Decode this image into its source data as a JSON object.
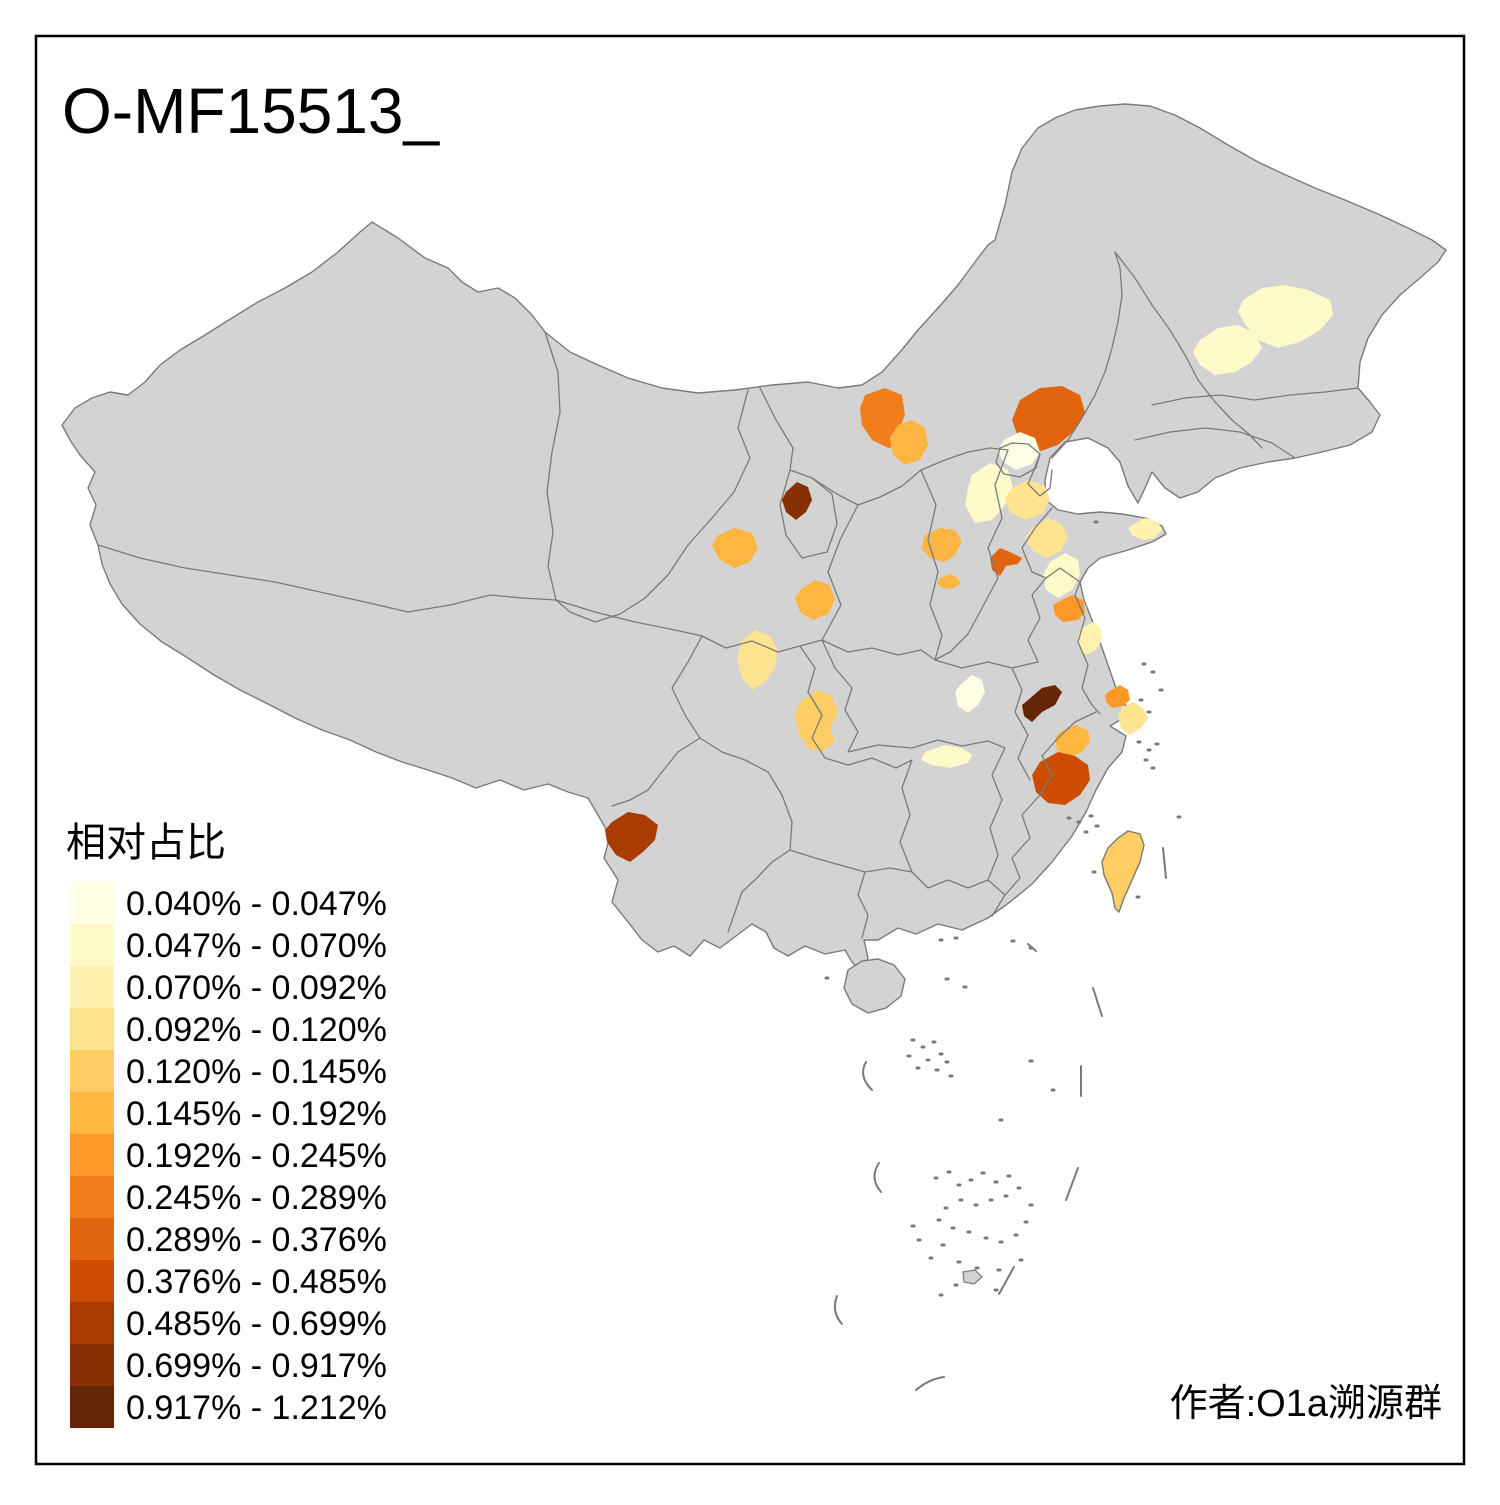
{
  "title": "O-MF15513_",
  "attribution": "作者:O1a溯源群",
  "legend": {
    "title": "相对占比",
    "items": [
      {
        "range": "0.040% - 0.047%",
        "color": "#FFFFE5"
      },
      {
        "range": "0.047% - 0.070%",
        "color": "#FFFACA"
      },
      {
        "range": "0.070% - 0.092%",
        "color": "#FFF1AE"
      },
      {
        "range": "0.092% - 0.120%",
        "color": "#FEE391"
      },
      {
        "range": "0.120% - 0.145%",
        "color": "#FECE65"
      },
      {
        "range": "0.145% - 0.192%",
        "color": "#FEB642"
      },
      {
        "range": "0.192% - 0.245%",
        "color": "#FE9929"
      },
      {
        "range": "0.245% - 0.289%",
        "color": "#F27E1B"
      },
      {
        "range": "0.289% - 0.376%",
        "color": "#E1640E"
      },
      {
        "range": "0.376% - 0.485%",
        "color": "#CC4C02"
      },
      {
        "range": "0.485% - 0.699%",
        "color": "#AA3C03"
      },
      {
        "range": "0.699% - 0.917%",
        "color": "#882F05"
      },
      {
        "range": "0.917% - 1.212%",
        "color": "#662506"
      }
    ]
  },
  "map": {
    "land_color": "#D3D3D3",
    "border_color": "#7A7A7A",
    "sea_color": "#FFFFFF",
    "frame_color": "#000000",
    "regions": [
      {
        "id": "heilongjiang-north",
        "range": "0.047% - 0.070%",
        "color": "#FFFACA"
      },
      {
        "id": "heilongjiang-south",
        "range": "0.047% - 0.070%",
        "color": "#FFFACA"
      },
      {
        "id": "baotou",
        "range": "0.245% - 0.289%",
        "color": "#F27E1B"
      },
      {
        "id": "hohhot",
        "range": "0.145% - 0.192%",
        "color": "#FEB642"
      },
      {
        "id": "chengde",
        "range": "0.289% - 0.376%",
        "color": "#E1640E"
      },
      {
        "id": "beijing",
        "range": "0.040% - 0.047%",
        "color": "#FFFFE5"
      },
      {
        "id": "baoding",
        "range": "0.047% - 0.070%",
        "color": "#FFFACA"
      },
      {
        "id": "cangzhou",
        "range": "0.092% - 0.120%",
        "color": "#FEE391"
      },
      {
        "id": "shizuishan",
        "range": "0.699% - 0.917%",
        "color": "#882F05"
      },
      {
        "id": "lanzhou",
        "range": "0.145% - 0.192%",
        "color": "#FEB642"
      },
      {
        "id": "luliang",
        "range": "0.145% - 0.192%",
        "color": "#FEB642"
      },
      {
        "id": "linfen",
        "range": "0.145% - 0.192%",
        "color": "#FEB642"
      },
      {
        "id": "zhengzhou",
        "range": "0.289% - 0.376%",
        "color": "#E1640E"
      },
      {
        "id": "jinan",
        "range": "0.092% - 0.120%",
        "color": "#FEE391"
      },
      {
        "id": "shandong-south",
        "range": "0.047% - 0.070%",
        "color": "#FFFACA"
      },
      {
        "id": "weihai",
        "range": "0.070% - 0.092%",
        "color": "#FFF1AE"
      },
      {
        "id": "baoji",
        "range": "0.145% - 0.192%",
        "color": "#FEB642"
      },
      {
        "id": "mianyang",
        "range": "0.092% - 0.120%",
        "color": "#FEE391"
      },
      {
        "id": "chongqing-west",
        "range": "0.120% - 0.145%",
        "color": "#FECE65"
      },
      {
        "id": "huaian",
        "range": "0.192% - 0.245%",
        "color": "#FE9929"
      },
      {
        "id": "yancheng",
        "range": "0.070% - 0.092%",
        "color": "#FFF1AE"
      },
      {
        "id": "wuxi",
        "range": "0.192% - 0.245%",
        "color": "#FE9929"
      },
      {
        "id": "shanghai",
        "range": "0.092% - 0.120%",
        "color": "#FEE391"
      },
      {
        "id": "hangzhou",
        "range": "0.145% - 0.192%",
        "color": "#FEB642"
      },
      {
        "id": "hubei-central",
        "range": "0.040% - 0.047%",
        "color": "#FFFFE5"
      },
      {
        "id": "anqing",
        "range": "0.917% - 1.212%",
        "color": "#662506"
      },
      {
        "id": "shangrao",
        "range": "0.376% - 0.485%",
        "color": "#CC4C02"
      },
      {
        "id": "yiyang",
        "range": "0.047% - 0.070%",
        "color": "#FFFACA"
      },
      {
        "id": "dali",
        "range": "0.485% - 0.699%",
        "color": "#AA3C03"
      },
      {
        "id": "taiwan",
        "range": "0.120% - 0.145%",
        "color": "#FECE65"
      }
    ]
  }
}
